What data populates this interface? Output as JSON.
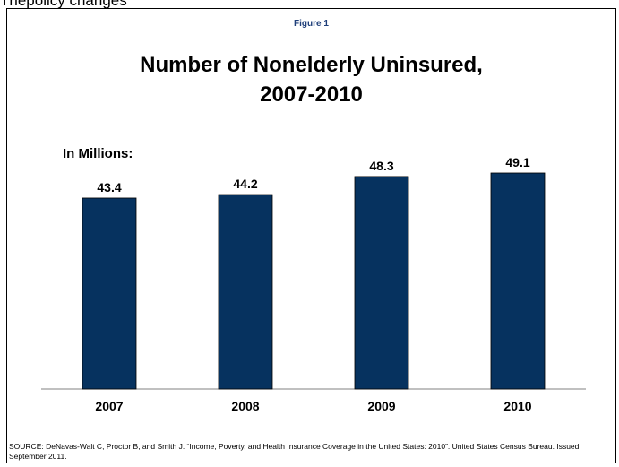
{
  "header_text": "Thepolicy changes",
  "figure_label": "Figure 1",
  "chart_data": {
    "type": "bar",
    "title": "Number of Nonelderly Uninsured, 2007-2010",
    "title_lines": [
      "Number of Nonelderly Uninsured,",
      "2007-2010"
    ],
    "units_label": "In Millions:",
    "categories": [
      "2007",
      "2008",
      "2009",
      "2010"
    ],
    "values": [
      43.4,
      44.2,
      48.3,
      49.1
    ],
    "value_labels": [
      "43.4",
      "44.2",
      "48.3",
      "49.1"
    ],
    "ylim": [
      0,
      49.1
    ],
    "bar_color": "#06325f",
    "grid": false,
    "legend": "none"
  },
  "source": "SOURCE: DeNavas-Walt C, Proctor B, and Smith J. “Income, Poverty, and Health Insurance Coverage in the United States: 2010”. United States Census Bureau. Issued September 2011."
}
